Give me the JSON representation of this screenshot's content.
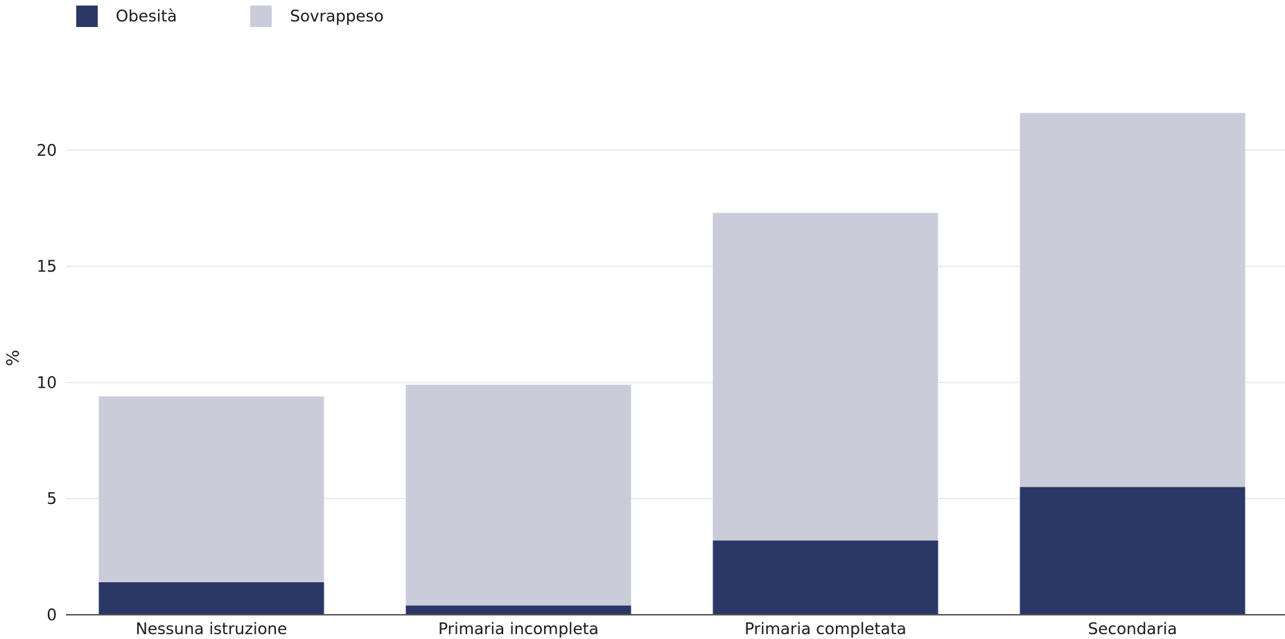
{
  "chart_data": {
    "type": "bar",
    "stacked": true,
    "categories": [
      "Nessuna istruzione",
      "Primaria incompleta",
      "Primaria completata",
      "Secondaria"
    ],
    "series": [
      {
        "name": "Obesità",
        "values": [
          1.4,
          0.4,
          3.2,
          5.5
        ],
        "color": "#2b3866"
      },
      {
        "name": "Sovrappeso",
        "values": [
          8.0,
          9.5,
          14.1,
          16.1
        ],
        "color": "#cacdd9"
      }
    ],
    "ylabel": "%",
    "xlabel": "",
    "ylim": [
      0,
      22.5
    ],
    "yticks": [
      0,
      5,
      10,
      15,
      20
    ],
    "grid": true,
    "legend_position": "top-left",
    "colors": {
      "grid": "#e6e6e6",
      "axis": "#555555"
    }
  }
}
